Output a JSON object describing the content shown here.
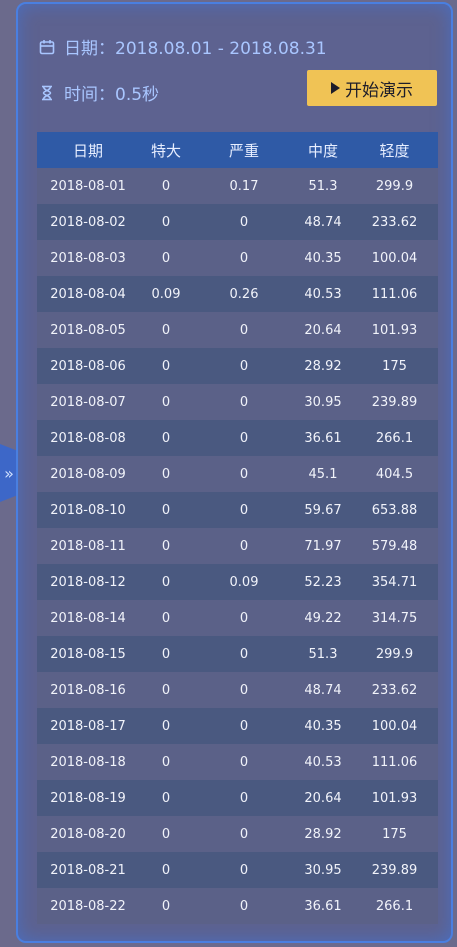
{
  "header": {
    "date_text": "日期：2018.08.01 - 2018.08.31",
    "time_text": "时间：0.5秒",
    "play_label": "开始演示"
  },
  "colors": {
    "panel_bg": "#5d6290",
    "border": "#4a7fe0",
    "header_text": "#a9c6ff",
    "button_bg": "#f0c355",
    "table_header_bg": "#2f5aa6"
  },
  "icons": {
    "date": "calendar-icon",
    "time": "hourglass-icon",
    "play": "play-icon",
    "collapse": "double-chevron-right-icon"
  },
  "collapse": {
    "glyph": "»"
  },
  "table": {
    "columns": [
      "日期",
      "特大",
      "严重",
      "中度",
      "轻度"
    ],
    "rows": [
      [
        "2018-08-01",
        "0",
        "0.17",
        "51.3",
        "299.9"
      ],
      [
        "2018-08-02",
        "0",
        "0",
        "48.74",
        "233.62"
      ],
      [
        "2018-08-03",
        "0",
        "0",
        "40.35",
        "100.04"
      ],
      [
        "2018-08-04",
        "0.09",
        "0.26",
        "40.53",
        "111.06"
      ],
      [
        "2018-08-05",
        "0",
        "0",
        "20.64",
        "101.93"
      ],
      [
        "2018-08-06",
        "0",
        "0",
        "28.92",
        "175"
      ],
      [
        "2018-08-07",
        "0",
        "0",
        "30.95",
        "239.89"
      ],
      [
        "2018-08-08",
        "0",
        "0",
        "36.61",
        "266.1"
      ],
      [
        "2018-08-09",
        "0",
        "0",
        "45.1",
        "404.5"
      ],
      [
        "2018-08-10",
        "0",
        "0",
        "59.67",
        "653.88"
      ],
      [
        "2018-08-11",
        "0",
        "0",
        "71.97",
        "579.48"
      ],
      [
        "2018-08-12",
        "0",
        "0.09",
        "52.23",
        "354.71"
      ],
      [
        "2018-08-14",
        "0",
        "0",
        "49.22",
        "314.75"
      ],
      [
        "2018-08-15",
        "0",
        "0",
        "51.3",
        "299.9"
      ],
      [
        "2018-08-16",
        "0",
        "0",
        "48.74",
        "233.62"
      ],
      [
        "2018-08-17",
        "0",
        "0",
        "40.35",
        "100.04"
      ],
      [
        "2018-08-18",
        "0",
        "0",
        "40.53",
        "111.06"
      ],
      [
        "2018-08-19",
        "0",
        "0",
        "20.64",
        "101.93"
      ],
      [
        "2018-08-20",
        "0",
        "0",
        "28.92",
        "175"
      ],
      [
        "2018-08-21",
        "0",
        "0",
        "30.95",
        "239.89"
      ],
      [
        "2018-08-22",
        "0",
        "0",
        "36.61",
        "266.1"
      ]
    ]
  }
}
